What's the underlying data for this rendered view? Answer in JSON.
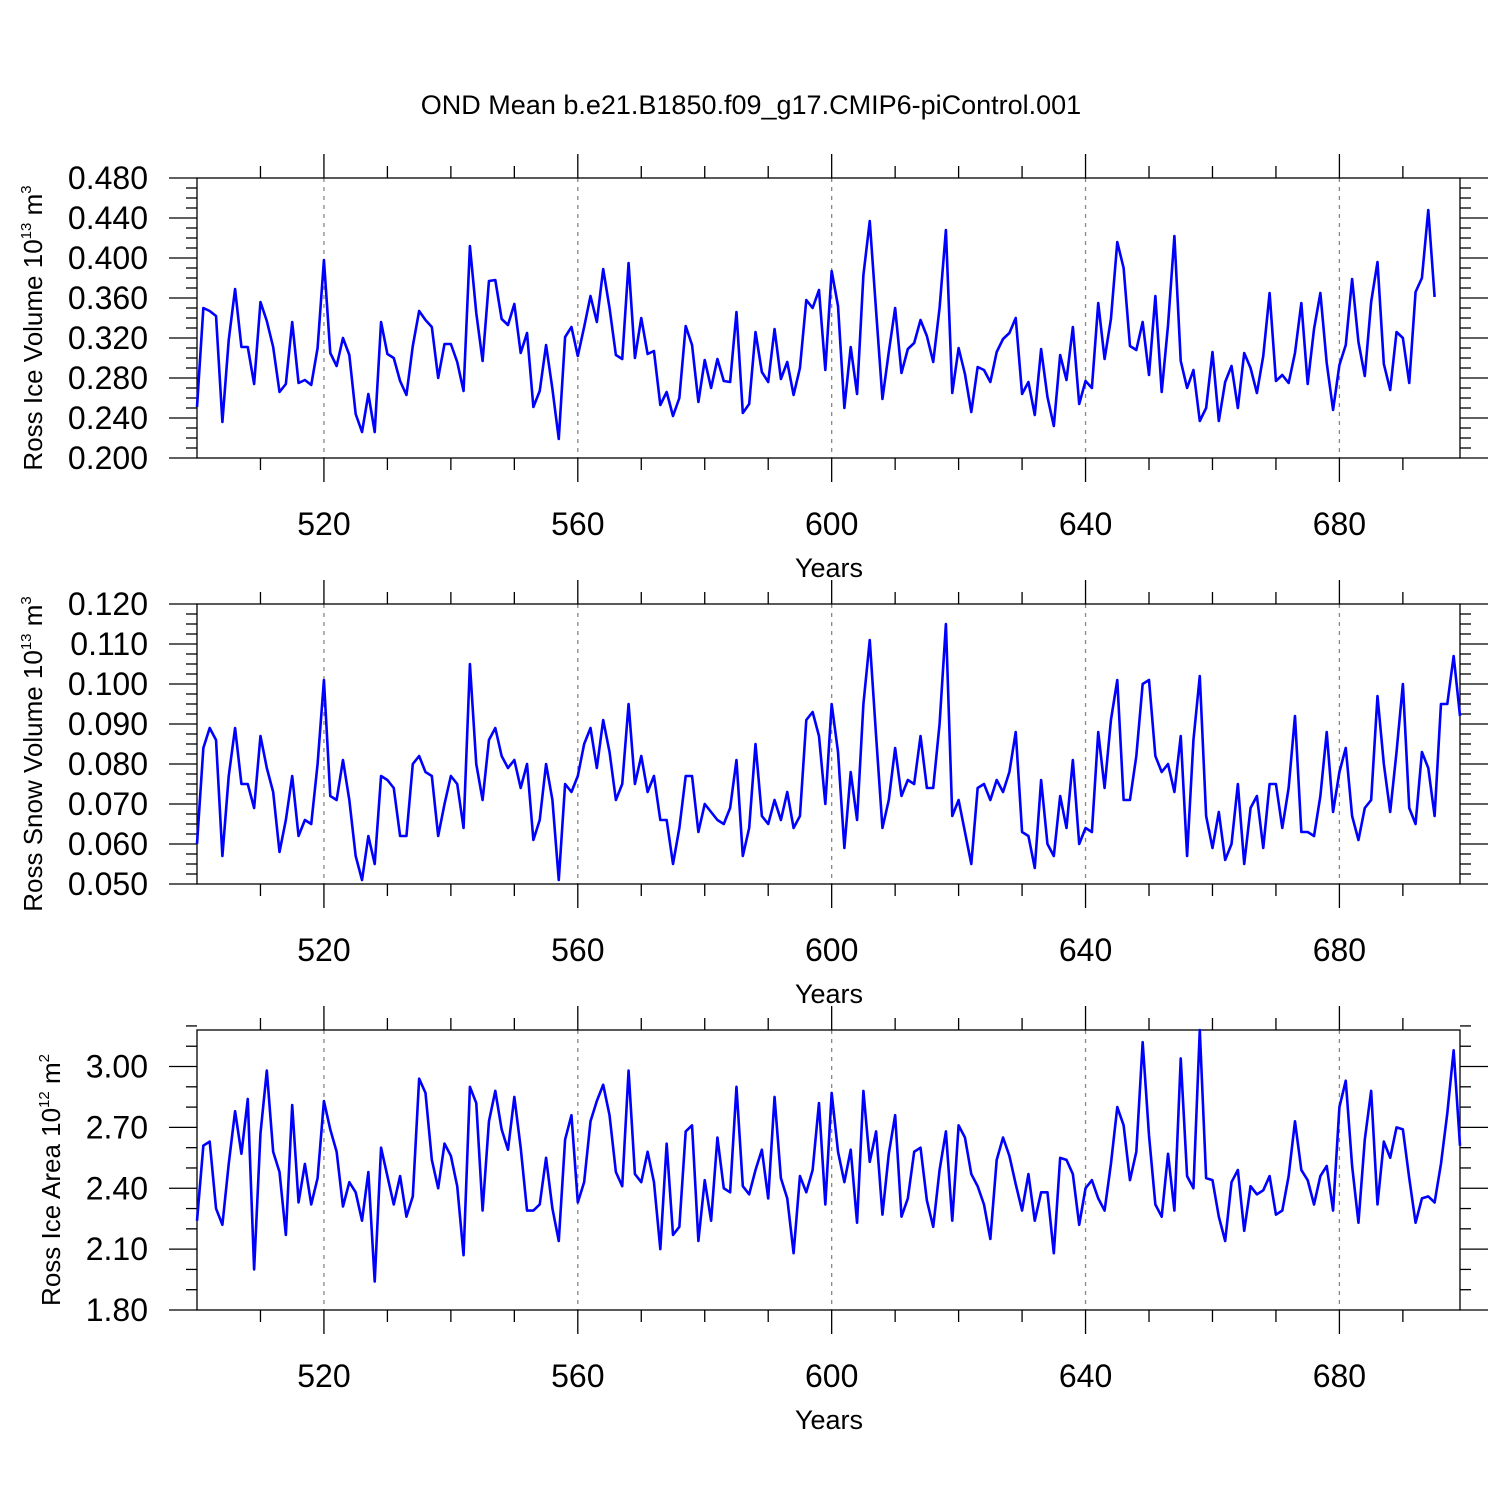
{
  "title": "OND Mean b.e21.B1850.f09_g17.CMIP6-piControl.001",
  "chart_data": [
    {
      "type": "line",
      "title": "OND Mean b.e21.B1850.f09_g17.CMIP6-piControl.001",
      "xlabel": "Years",
      "ylabel_prefix": "Ross Ice Volume 10",
      "ylabel_exp": "13",
      "ylabel_unit": "m",
      "ylabel_unit_exp": "3",
      "xlim": [
        500,
        699
      ],
      "ylim": [
        0.2,
        0.48
      ],
      "xticks": [
        520,
        560,
        600,
        640,
        680
      ],
      "yticks": [
        0.2,
        0.24,
        0.28,
        0.32,
        0.36,
        0.4,
        0.44,
        0.48
      ],
      "ytick_labels": [
        "0.200",
        "0.240",
        "0.280",
        "0.320",
        "0.360",
        "0.400",
        "0.440",
        "0.480"
      ],
      "ymin_step": 0.01,
      "line_color": "#0000ff",
      "grid": "dashed vertical at major x ticks",
      "series": [
        {
          "name": "Ross Ice Volume",
          "x_start": 500,
          "values": [
            0.251,
            0.35,
            0.347,
            0.342,
            0.236,
            0.318,
            0.369,
            0.311,
            0.311,
            0.274,
            0.356,
            0.337,
            0.311,
            0.266,
            0.274,
            0.336,
            0.275,
            0.278,
            0.273,
            0.31,
            0.398,
            0.305,
            0.292,
            0.32,
            0.303,
            0.244,
            0.226,
            0.264,
            0.226,
            0.336,
            0.304,
            0.3,
            0.277,
            0.263,
            0.312,
            0.347,
            0.338,
            0.331,
            0.28,
            0.314,
            0.314,
            0.296,
            0.267,
            0.412,
            0.345,
            0.297,
            0.377,
            0.378,
            0.339,
            0.333,
            0.354,
            0.305,
            0.325,
            0.251,
            0.267,
            0.313,
            0.269,
            0.219,
            0.321,
            0.331,
            0.302,
            0.331,
            0.362,
            0.336,
            0.389,
            0.35,
            0.303,
            0.299,
            0.395,
            0.3,
            0.34,
            0.304,
            0.307,
            0.253,
            0.266,
            0.242,
            0.26,
            0.332,
            0.313,
            0.256,
            0.298,
            0.27,
            0.299,
            0.277,
            0.276,
            0.346,
            0.245,
            0.254,
            0.326,
            0.286,
            0.276,
            0.329,
            0.279,
            0.296,
            0.263,
            0.29,
            0.358,
            0.35,
            0.368,
            0.288,
            0.387,
            0.352,
            0.25,
            0.311,
            0.264,
            0.383,
            0.437,
            0.347,
            0.259,
            0.306,
            0.35,
            0.285,
            0.309,
            0.315,
            0.338,
            0.322,
            0.296,
            0.35,
            0.428,
            0.265,
            0.31,
            0.284,
            0.246,
            0.291,
            0.288,
            0.276,
            0.306,
            0.319,
            0.325,
            0.34,
            0.264,
            0.276,
            0.243,
            0.309,
            0.261,
            0.232,
            0.303,
            0.278,
            0.331,
            0.254,
            0.277,
            0.27,
            0.355,
            0.299,
            0.339,
            0.416,
            0.39,
            0.312,
            0.308,
            0.336,
            0.283,
            0.362,
            0.266,
            0.333,
            0.422,
            0.297,
            0.27,
            0.288,
            0.237,
            0.25,
            0.306,
            0.237,
            0.276,
            0.292,
            0.25,
            0.305,
            0.29,
            0.265,
            0.302,
            0.365,
            0.277,
            0.283,
            0.275,
            0.305,
            0.355,
            0.274,
            0.329,
            0.365,
            0.295,
            0.248,
            0.293,
            0.313,
            0.379,
            0.316,
            0.282,
            0.356,
            0.396,
            0.294,
            0.268,
            0.326,
            0.32,
            0.275,
            0.366,
            0.38,
            0.448,
            0.361
          ]
        }
      ]
    },
    {
      "type": "line",
      "xlabel": "Years",
      "ylabel_prefix": "Ross Snow Volume 10",
      "ylabel_exp": "13",
      "ylabel_unit": "m",
      "ylabel_unit_exp": "3",
      "xlim": [
        500,
        699
      ],
      "ylim": [
        0.05,
        0.12
      ],
      "xticks": [
        520,
        560,
        600,
        640,
        680
      ],
      "yticks": [
        0.05,
        0.06,
        0.07,
        0.08,
        0.09,
        0.1,
        0.11,
        0.12
      ],
      "ytick_labels": [
        "0.050",
        "0.060",
        "0.070",
        "0.080",
        "0.090",
        "0.100",
        "0.110",
        "0.120"
      ],
      "ymin_step": 0.0025,
      "line_color": "#0000ff",
      "grid": "dashed vertical at major x ticks",
      "series": [
        {
          "name": "Ross Snow Volume",
          "x_start": 500,
          "values": [
            0.06,
            0.084,
            0.089,
            0.086,
            0.057,
            0.077,
            0.089,
            0.075,
            0.075,
            0.069,
            0.087,
            0.079,
            0.073,
            0.058,
            0.066,
            0.077,
            0.062,
            0.066,
            0.065,
            0.08,
            0.101,
            0.072,
            0.071,
            0.081,
            0.071,
            0.057,
            0.051,
            0.062,
            0.055,
            0.077,
            0.076,
            0.074,
            0.062,
            0.062,
            0.08,
            0.082,
            0.078,
            0.077,
            0.062,
            0.07,
            0.077,
            0.075,
            0.064,
            0.105,
            0.08,
            0.071,
            0.086,
            0.089,
            0.082,
            0.079,
            0.081,
            0.074,
            0.08,
            0.061,
            0.066,
            0.08,
            0.071,
            0.051,
            0.075,
            0.073,
            0.077,
            0.085,
            0.089,
            0.079,
            0.091,
            0.083,
            0.071,
            0.075,
            0.095,
            0.075,
            0.082,
            0.073,
            0.077,
            0.066,
            0.066,
            0.055,
            0.064,
            0.077,
            0.077,
            0.063,
            0.07,
            0.068,
            0.066,
            0.065,
            0.069,
            0.081,
            0.057,
            0.064,
            0.085,
            0.067,
            0.065,
            0.071,
            0.066,
            0.073,
            0.064,
            0.067,
            0.091,
            0.093,
            0.087,
            0.07,
            0.095,
            0.083,
            0.059,
            0.078,
            0.066,
            0.095,
            0.111,
            0.087,
            0.064,
            0.071,
            0.084,
            0.072,
            0.076,
            0.075,
            0.087,
            0.074,
            0.074,
            0.09,
            0.115,
            0.067,
            0.071,
            0.063,
            0.055,
            0.074,
            0.075,
            0.071,
            0.076,
            0.073,
            0.078,
            0.088,
            0.063,
            0.062,
            0.054,
            0.076,
            0.06,
            0.057,
            0.072,
            0.064,
            0.081,
            0.06,
            0.064,
            0.063,
            0.088,
            0.074,
            0.091,
            0.101,
            0.071,
            0.071,
            0.082,
            0.1,
            0.101,
            0.082,
            0.078,
            0.08,
            0.073,
            0.087,
            0.057,
            0.086,
            0.102,
            0.067,
            0.059,
            0.068,
            0.056,
            0.06,
            0.075,
            0.055,
            0.069,
            0.072,
            0.059,
            0.075,
            0.075,
            0.064,
            0.074,
            0.092,
            0.063,
            0.063,
            0.062,
            0.072,
            0.088,
            0.068,
            0.078,
            0.084,
            0.067,
            0.061,
            0.069,
            0.071,
            0.097,
            0.08,
            0.068,
            0.083,
            0.1,
            0.069,
            0.065,
            0.083,
            0.079,
            0.067,
            0.095,
            0.095,
            0.107,
            0.092
          ]
        }
      ]
    },
    {
      "type": "line",
      "xlabel": "Years",
      "ylabel_prefix": "Ross Ice Area 10",
      "ylabel_exp": "12",
      "ylabel_unit": "m",
      "ylabel_unit_exp": "2",
      "xlim": [
        500,
        699
      ],
      "ylim": [
        1.8,
        3.18
      ],
      "xticks": [
        520,
        560,
        600,
        640,
        680
      ],
      "yticks": [
        1.8,
        2.1,
        2.4,
        2.7,
        3.0
      ],
      "ytick_labels": [
        "1.80",
        "2.10",
        "2.40",
        "2.70",
        "3.00"
      ],
      "ymin_step": 0.1,
      "line_color": "#0000ff",
      "grid": "dashed vertical at major x ticks",
      "series": [
        {
          "name": "Ross Ice Area",
          "x_start": 500,
          "values": [
            2.24,
            2.61,
            2.63,
            2.3,
            2.22,
            2.52,
            2.78,
            2.57,
            2.84,
            2.0,
            2.67,
            2.98,
            2.58,
            2.48,
            2.17,
            2.81,
            2.33,
            2.52,
            2.32,
            2.45,
            2.83,
            2.69,
            2.58,
            2.31,
            2.43,
            2.38,
            2.24,
            2.48,
            1.94,
            2.6,
            2.46,
            2.32,
            2.46,
            2.26,
            2.36,
            2.94,
            2.87,
            2.54,
            2.4,
            2.62,
            2.56,
            2.41,
            2.07,
            2.9,
            2.82,
            2.29,
            2.73,
            2.88,
            2.69,
            2.59,
            2.85,
            2.6,
            2.29,
            2.29,
            2.32,
            2.55,
            2.3,
            2.14,
            2.64,
            2.76,
            2.33,
            2.43,
            2.73,
            2.83,
            2.91,
            2.76,
            2.48,
            2.41,
            2.98,
            2.47,
            2.43,
            2.58,
            2.43,
            2.1,
            2.62,
            2.17,
            2.21,
            2.68,
            2.71,
            2.14,
            2.44,
            2.24,
            2.65,
            2.4,
            2.38,
            2.9,
            2.41,
            2.37,
            2.49,
            2.59,
            2.35,
            2.85,
            2.45,
            2.35,
            2.08,
            2.46,
            2.38,
            2.49,
            2.82,
            2.32,
            2.87,
            2.58,
            2.43,
            2.59,
            2.23,
            2.88,
            2.53,
            2.68,
            2.27,
            2.57,
            2.76,
            2.26,
            2.35,
            2.58,
            2.6,
            2.34,
            2.21,
            2.49,
            2.68,
            2.24,
            2.71,
            2.65,
            2.47,
            2.41,
            2.32,
            2.15,
            2.54,
            2.65,
            2.56,
            2.42,
            2.29,
            2.47,
            2.24,
            2.38,
            2.38,
            2.08,
            2.55,
            2.54,
            2.47,
            2.22,
            2.4,
            2.44,
            2.35,
            2.29,
            2.52,
            2.8,
            2.71,
            2.44,
            2.58,
            3.12,
            2.66,
            2.32,
            2.26,
            2.57,
            2.29,
            3.04,
            2.46,
            2.4,
            3.18,
            2.45,
            2.44,
            2.26,
            2.14,
            2.43,
            2.49,
            2.19,
            2.41,
            2.37,
            2.39,
            2.46,
            2.27,
            2.29,
            2.46,
            2.73,
            2.49,
            2.44,
            2.32,
            2.46,
            2.51,
            2.29,
            2.8,
            2.93,
            2.51,
            2.23,
            2.64,
            2.88,
            2.32,
            2.63,
            2.55,
            2.7,
            2.69,
            2.45,
            2.23,
            2.35,
            2.36,
            2.33,
            2.52,
            2.77,
            3.08,
            2.61
          ]
        }
      ]
    }
  ]
}
